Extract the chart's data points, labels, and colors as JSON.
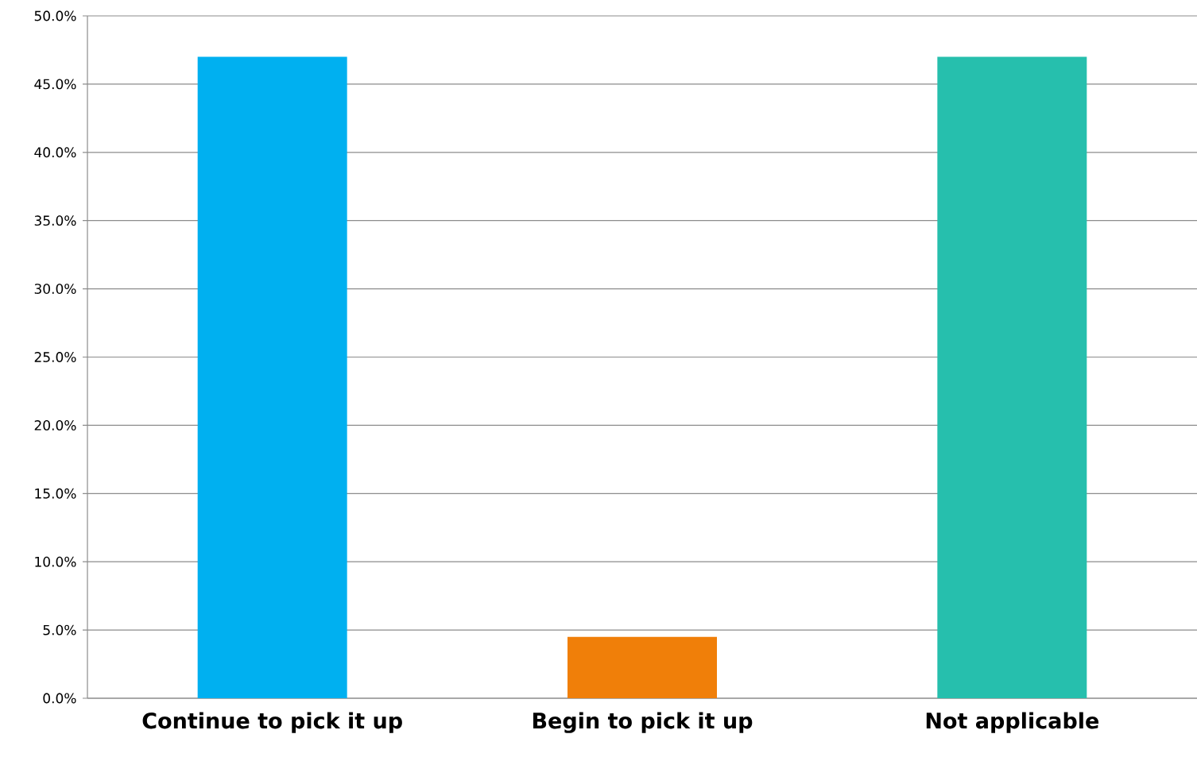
{
  "chart_data": {
    "type": "bar",
    "categories": [
      "Continue to pick it up",
      "Begin to pick it up",
      "Not applicable"
    ],
    "values": [
      47.0,
      4.5,
      47.0
    ],
    "colors": [
      "#00b0f0",
      "#f07f09",
      "#26bfad"
    ],
    "ylim": [
      0,
      50
    ],
    "yticks": [
      {
        "value": 0,
        "label": "0.0%"
      },
      {
        "value": 5,
        "label": "5.0%"
      },
      {
        "value": 10,
        "label": "10.0%"
      },
      {
        "value": 15,
        "label": "15.0%"
      },
      {
        "value": 20,
        "label": "20.0%"
      },
      {
        "value": 25,
        "label": "25.0%"
      },
      {
        "value": 30,
        "label": "30.0%"
      },
      {
        "value": 35,
        "label": "35.0%"
      },
      {
        "value": 40,
        "label": "40.0%"
      },
      {
        "value": 45,
        "label": "45.0%"
      },
      {
        "value": 50,
        "label": "50.0%"
      }
    ],
    "grid": "y"
  }
}
